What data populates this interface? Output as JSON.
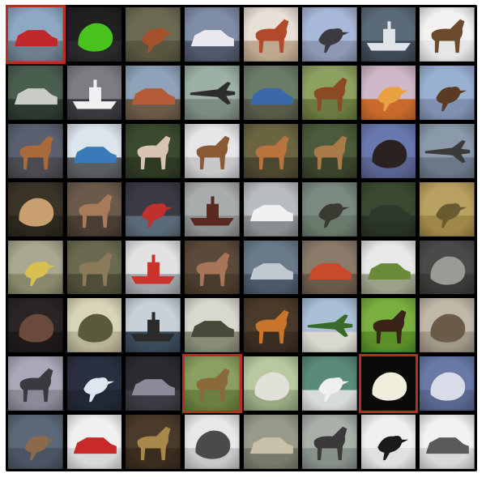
{
  "grid": {
    "rows": 8,
    "cols": 8,
    "highlight_color": "#b5301c",
    "cells": [
      {
        "subject": "red-car",
        "bg": "#8ea8c4",
        "ground": "#6f7f8f",
        "fg": "#c0282b",
        "shape": "car",
        "highlighted": true
      },
      {
        "subject": "frog",
        "bg": "#202020",
        "ground": "#2a2a2a",
        "fg": "#49c21e",
        "shape": "blob",
        "highlighted": false
      },
      {
        "subject": "bird",
        "bg": "#6c6a52",
        "ground": "#58563f",
        "fg": "#a3522d",
        "shape": "bird",
        "highlighted": false
      },
      {
        "subject": "truck",
        "bg": "#7f8ca6",
        "ground": "#50586a",
        "fg": "#e8e8ee",
        "shape": "car",
        "highlighted": false
      },
      {
        "subject": "horse",
        "bg": "#e8dfd6",
        "ground": "#c0a890",
        "fg": "#b04a2a",
        "shape": "animal",
        "highlighted": false
      },
      {
        "subject": "bird",
        "bg": "#a8b8d8",
        "ground": "#8c98b4",
        "fg": "#3a3a40",
        "shape": "bird",
        "highlighted": false
      },
      {
        "subject": "ship",
        "bg": "#5a6a78",
        "ground": "#3e4a56",
        "fg": "#e0e4ea",
        "shape": "ship",
        "highlighted": false
      },
      {
        "subject": "dog",
        "bg": "#f2f2f2",
        "ground": "#e6e6e6",
        "fg": "#6b4a2c",
        "shape": "animal",
        "highlighted": false
      },
      {
        "subject": "car",
        "bg": "#4a5e50",
        "ground": "#2e3a30",
        "fg": "#c8ccc4",
        "shape": "car",
        "highlighted": false
      },
      {
        "subject": "ship",
        "bg": "#7c7c82",
        "ground": "#3a3a3e",
        "fg": "#f0f0f2",
        "shape": "ship",
        "highlighted": false
      },
      {
        "subject": "truck",
        "bg": "#8ea2b8",
        "ground": "#6a5a48",
        "fg": "#b45c3a",
        "shape": "car",
        "highlighted": false
      },
      {
        "subject": "plane",
        "bg": "#9cb0a4",
        "ground": "#7c8c80",
        "fg": "#2c2c2c",
        "shape": "plane",
        "highlighted": false
      },
      {
        "subject": "car",
        "bg": "#6a7c68",
        "ground": "#5a5a48",
        "fg": "#3a68a8",
        "shape": "car",
        "highlighted": false
      },
      {
        "subject": "horse",
        "bg": "#8ea060",
        "ground": "#6a7a40",
        "fg": "#8a4a24",
        "shape": "animal",
        "highlighted": false
      },
      {
        "subject": "bird",
        "bg": "#d0b8c8",
        "ground": "#c86a2a",
        "fg": "#e8a040",
        "shape": "bird",
        "highlighted": false
      },
      {
        "subject": "bird",
        "bg": "#9ab0d2",
        "ground": "#8090b0",
        "fg": "#5a3a22",
        "shape": "bird",
        "highlighted": false
      },
      {
        "subject": "horse",
        "bg": "#5a6070",
        "ground": "#4a4a50",
        "fg": "#a86a3a",
        "shape": "animal",
        "highlighted": false
      },
      {
        "subject": "truck",
        "bg": "#dce4ec",
        "ground": "#5a5e62",
        "fg": "#3a7ab8",
        "shape": "car",
        "highlighted": false
      },
      {
        "subject": "horse",
        "bg": "#3a4a2e",
        "ground": "#2e3a24",
        "fg": "#d8c4b0",
        "shape": "animal",
        "highlighted": false
      },
      {
        "subject": "dog",
        "bg": "#e6e6e8",
        "ground": "#c8c8ca",
        "fg": "#8a5a34",
        "shape": "animal",
        "highlighted": false
      },
      {
        "subject": "deer",
        "bg": "#6a6440",
        "ground": "#4c4830",
        "fg": "#b8743c",
        "shape": "animal",
        "highlighted": false
      },
      {
        "subject": "deer",
        "bg": "#4a5a3a",
        "ground": "#3a442c",
        "fg": "#a87a48",
        "shape": "animal",
        "highlighted": false
      },
      {
        "subject": "bird",
        "bg": "#6a78b0",
        "ground": "#5a6490",
        "fg": "#2a2220",
        "shape": "blob",
        "highlighted": false
      },
      {
        "subject": "plane",
        "bg": "#8a9aaa",
        "ground": "#6a7888",
        "fg": "#3a3a3a",
        "shape": "plane",
        "highlighted": false
      },
      {
        "subject": "cat",
        "bg": "#3a3428",
        "ground": "#2c281e",
        "fg": "#c8a070",
        "shape": "blob",
        "highlighted": false
      },
      {
        "subject": "deer",
        "bg": "#6a5a4a",
        "ground": "#4a3e32",
        "fg": "#a87a5a",
        "shape": "animal",
        "highlighted": false
      },
      {
        "subject": "bird",
        "bg": "#3a3a44",
        "ground": "#5a6a78",
        "fg": "#c0302c",
        "shape": "bird",
        "highlighted": false
      },
      {
        "subject": "ship",
        "bg": "#a8acac",
        "ground": "#8c908e",
        "fg": "#5a2a20",
        "shape": "ship",
        "highlighted": false
      },
      {
        "subject": "truck",
        "bg": "#b8bcc0",
        "ground": "#8a8e90",
        "fg": "#f0f0f0",
        "shape": "car",
        "highlighted": false
      },
      {
        "subject": "bird",
        "bg": "#7a8a80",
        "ground": "#6a7a6c",
        "fg": "#3a3a32",
        "shape": "bird",
        "highlighted": false
      },
      {
        "subject": "car",
        "bg": "#3a4a30",
        "ground": "#2a3424",
        "fg": "#2c3a2c",
        "shape": "car",
        "highlighted": false
      },
      {
        "subject": "bird",
        "bg": "#b8a060",
        "ground": "#a08848",
        "fg": "#6a5a30",
        "shape": "bird",
        "highlighted": false
      },
      {
        "subject": "bird",
        "bg": "#a8a890",
        "ground": "#88886c",
        "fg": "#d8c050",
        "shape": "bird",
        "highlighted": false
      },
      {
        "subject": "deer",
        "bg": "#6a6a50",
        "ground": "#4e4e38",
        "fg": "#8a7a5a",
        "shape": "animal",
        "highlighted": false
      },
      {
        "subject": "ship",
        "bg": "#e0e2e4",
        "ground": "#a0a4a8",
        "fg": "#c8342a",
        "shape": "ship",
        "highlighted": false
      },
      {
        "subject": "deer",
        "bg": "#5a4a3a",
        "ground": "#4a3c2c",
        "fg": "#a8745a",
        "shape": "animal",
        "highlighted": false
      },
      {
        "subject": "truck",
        "bg": "#6a7a8a",
        "ground": "#4a5868",
        "fg": "#c0c8d0",
        "shape": "car",
        "highlighted": false
      },
      {
        "subject": "truck",
        "bg": "#8a7a6a",
        "ground": "#6a5a4a",
        "fg": "#c84a2a",
        "shape": "car",
        "highlighted": false
      },
      {
        "subject": "truck",
        "bg": "#e8e8e8",
        "ground": "#9aa08a",
        "fg": "#6a8a3a",
        "shape": "car",
        "highlighted": false
      },
      {
        "subject": "cat",
        "bg": "#4a4a48",
        "ground": "#3a3a38",
        "fg": "#9a9a96",
        "shape": "blob",
        "highlighted": false
      },
      {
        "subject": "cat",
        "bg": "#2a2424",
        "ground": "#1e1a1a",
        "fg": "#6a4a3a",
        "shape": "blob",
        "highlighted": false
      },
      {
        "subject": "frog",
        "bg": "#d8d4b8",
        "ground": "#b8b498",
        "fg": "#5a5a3a",
        "shape": "blob",
        "highlighted": false
      },
      {
        "subject": "ship",
        "bg": "#c8d0d8",
        "ground": "#3a4a5a",
        "fg": "#2a2a2a",
        "shape": "ship",
        "highlighted": false
      },
      {
        "subject": "truck",
        "bg": "#d8d8d0",
        "ground": "#8a8a78",
        "fg": "#4a4a3a",
        "shape": "car",
        "highlighted": false
      },
      {
        "subject": "dog",
        "bg": "#4a3a2a",
        "ground": "#3a2c20",
        "fg": "#c8742a",
        "shape": "animal",
        "highlighted": false
      },
      {
        "subject": "plane",
        "bg": "#aac0d8",
        "ground": "#d8d8d0",
        "fg": "#3a6a2a",
        "shape": "plane",
        "highlighted": false
      },
      {
        "subject": "horse",
        "bg": "#7ab040",
        "ground": "#5a9028",
        "fg": "#3a2418",
        "shape": "animal",
        "highlighted": false
      },
      {
        "subject": "cat",
        "bg": "#c0b8a8",
        "ground": "#a09888",
        "fg": "#6a5a48",
        "shape": "blob",
        "highlighted": false
      },
      {
        "subject": "deer",
        "bg": "#a8a8b8",
        "ground": "#8a8a98",
        "fg": "#3a3a3e",
        "shape": "animal",
        "highlighted": false
      },
      {
        "subject": "bird",
        "bg": "#2a3040",
        "ground": "#222836",
        "fg": "#e0e6f0",
        "shape": "bird",
        "highlighted": false
      },
      {
        "subject": "truck",
        "bg": "#2a2a30",
        "ground": "#3a3a42",
        "fg": "#8a8a98",
        "shape": "car",
        "highlighted": false
      },
      {
        "subject": "horse",
        "bg": "#8aa060",
        "ground": "#6a8040",
        "fg": "#8a6a3a",
        "shape": "animal",
        "highlighted": true
      },
      {
        "subject": "dog",
        "bg": "#b8c8a0",
        "ground": "#98a880",
        "fg": "#e0e0d8",
        "shape": "blob",
        "highlighted": false
      },
      {
        "subject": "bird",
        "bg": "#5a8a7a",
        "ground": "#d8dcd8",
        "fg": "#f0f0f0",
        "shape": "bird",
        "highlighted": false
      },
      {
        "subject": "bird",
        "bg": "#0a0a0a",
        "ground": "#0a0a0a",
        "fg": "#f0eedc",
        "shape": "blob",
        "highlighted": true
      },
      {
        "subject": "frog",
        "bg": "#6a7aa8",
        "ground": "#5a6890",
        "fg": "#d8dce8",
        "shape": "blob",
        "highlighted": false
      },
      {
        "subject": "bird",
        "bg": "#5a6878",
        "ground": "#4a5464",
        "fg": "#8a6a4a",
        "shape": "bird",
        "highlighted": false
      },
      {
        "subject": "car",
        "bg": "#f0f0f0",
        "ground": "#d8d8d8",
        "fg": "#c82a2a",
        "shape": "car",
        "highlighted": false
      },
      {
        "subject": "deer",
        "bg": "#4a3a2a",
        "ground": "#3a2c1e",
        "fg": "#a8884a",
        "shape": "animal",
        "highlighted": false
      },
      {
        "subject": "dog",
        "bg": "#e8e8e8",
        "ground": "#c8c8c8",
        "fg": "#4a4a4a",
        "shape": "blob",
        "highlighted": false
      },
      {
        "subject": "car",
        "bg": "#9a9a8a",
        "ground": "#7a7a6a",
        "fg": "#c8c0a8",
        "shape": "car",
        "highlighted": false
      },
      {
        "subject": "dog",
        "bg": "#a8b0a8",
        "ground": "#88908a",
        "fg": "#3a3a3a",
        "shape": "animal",
        "highlighted": false
      },
      {
        "subject": "bird",
        "bg": "#f0f0f0",
        "ground": "#e0e0e0",
        "fg": "#1a1a1a",
        "shape": "bird",
        "highlighted": false
      },
      {
        "subject": "truck",
        "bg": "#f2f2f2",
        "ground": "#d8d8d8",
        "fg": "#5a5a5a",
        "shape": "car",
        "highlighted": false
      }
    ]
  }
}
